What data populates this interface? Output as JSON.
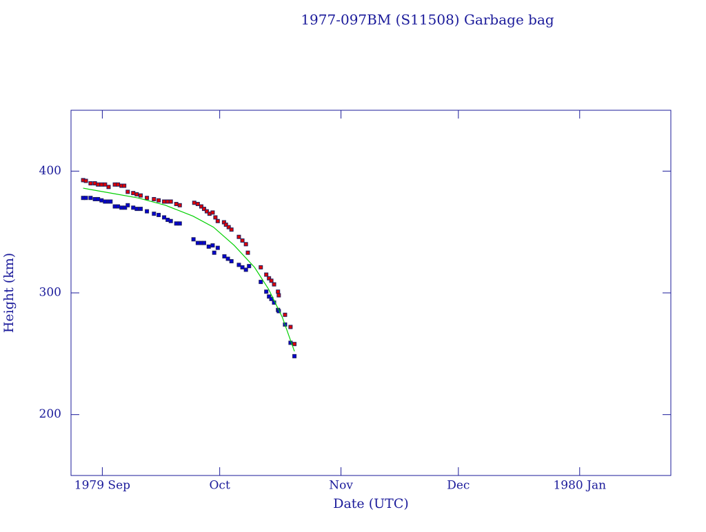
{
  "chart_data": {
    "type": "scatter",
    "title": "1977-097BM (S11508) Garbage bag",
    "x_label": "Date (UTC)",
    "y_label": "Height (km)",
    "xlim": [
      -8,
      145.3
    ],
    "ylim": [
      150,
      450
    ],
    "xticks": [
      {
        "value": 0,
        "label": "1979 Sep"
      },
      {
        "value": 30,
        "label": "Oct"
      },
      {
        "value": 61,
        "label": "Nov"
      },
      {
        "value": 91,
        "label": "Dec"
      },
      {
        "value": 122,
        "label": "1980 Jan"
      }
    ],
    "yticks": [
      200,
      300,
      400
    ],
    "series": [
      {
        "type": "scatter",
        "color": "#e00000",
        "x": [
          -4.9,
          -4.2,
          -3,
          -1.9,
          -1.1,
          -0.2,
          0.7,
          1.6,
          3.2,
          4.0,
          4.9,
          5.6,
          6.5,
          7.9,
          8.8,
          9.8,
          11.4,
          13.2,
          14.4,
          15.8,
          16.7,
          17.5,
          18.9,
          19.8,
          23.5,
          24.4,
          25.3,
          26.0,
          26.7,
          27.4,
          28.2,
          28.9,
          29.5,
          31.1,
          31.6,
          32.3,
          33.0,
          34.9,
          35.8,
          36.7,
          37.2,
          40.5,
          41.9,
          42.6,
          43.2,
          43.9,
          44.9,
          45.1,
          46.7,
          48.1,
          49.1
        ],
        "y": [
          392.6,
          392,
          390,
          390,
          389,
          389,
          389,
          387,
          389,
          389,
          388,
          388,
          383,
          382,
          381,
          380,
          378,
          377,
          376,
          375,
          375,
          375,
          373,
          372,
          374,
          373,
          371,
          369,
          367,
          365,
          366,
          362,
          359,
          358,
          356,
          354,
          352,
          346,
          343,
          340,
          333,
          321,
          315,
          312,
          310,
          307,
          301,
          298,
          282,
          272,
          258
        ]
      },
      {
        "type": "scatter",
        "color": "#0000d0",
        "x": [
          -4.9,
          -4.2,
          -3,
          -1.9,
          -1.1,
          -0.2,
          0.7,
          1.6,
          2.1,
          3.2,
          4.0,
          4.9,
          5.8,
          6.5,
          7.9,
          8.8,
          9.8,
          11.4,
          13.2,
          14.4,
          15.8,
          16.7,
          17.5,
          18.9,
          19.8,
          23.3,
          24.4,
          25.3,
          26.0,
          27.2,
          28.2,
          28.6,
          29.5,
          31.2,
          32.1,
          33.0,
          34.9,
          35.8,
          36.7,
          37.5,
          40.5,
          41.9,
          42.6,
          43.2,
          43.9,
          44.9,
          45.1,
          46.7,
          48.1,
          49.1
        ],
        "y": [
          378,
          378,
          378,
          377,
          377,
          376,
          375,
          375,
          375,
          371,
          371,
          370,
          370,
          372,
          370,
          369,
          369,
          367,
          365,
          364,
          362,
          360,
          359,
          357,
          357,
          344,
          341,
          341,
          341,
          338,
          339,
          333,
          337,
          330,
          328,
          326,
          323,
          321,
          319,
          322,
          309,
          301,
          297,
          295,
          292,
          286,
          285,
          274,
          259,
          248
        ]
      },
      {
        "type": "line",
        "color": "#00d000",
        "x": [
          -4.9,
          2.1,
          9.1,
          16.1,
          23.2,
          28.4,
          33.7,
          38.9,
          42.5,
          46,
          49.1
        ],
        "y": [
          386,
          382,
          378,
          372,
          363,
          354,
          339,
          321,
          303,
          280,
          252
        ]
      }
    ]
  }
}
